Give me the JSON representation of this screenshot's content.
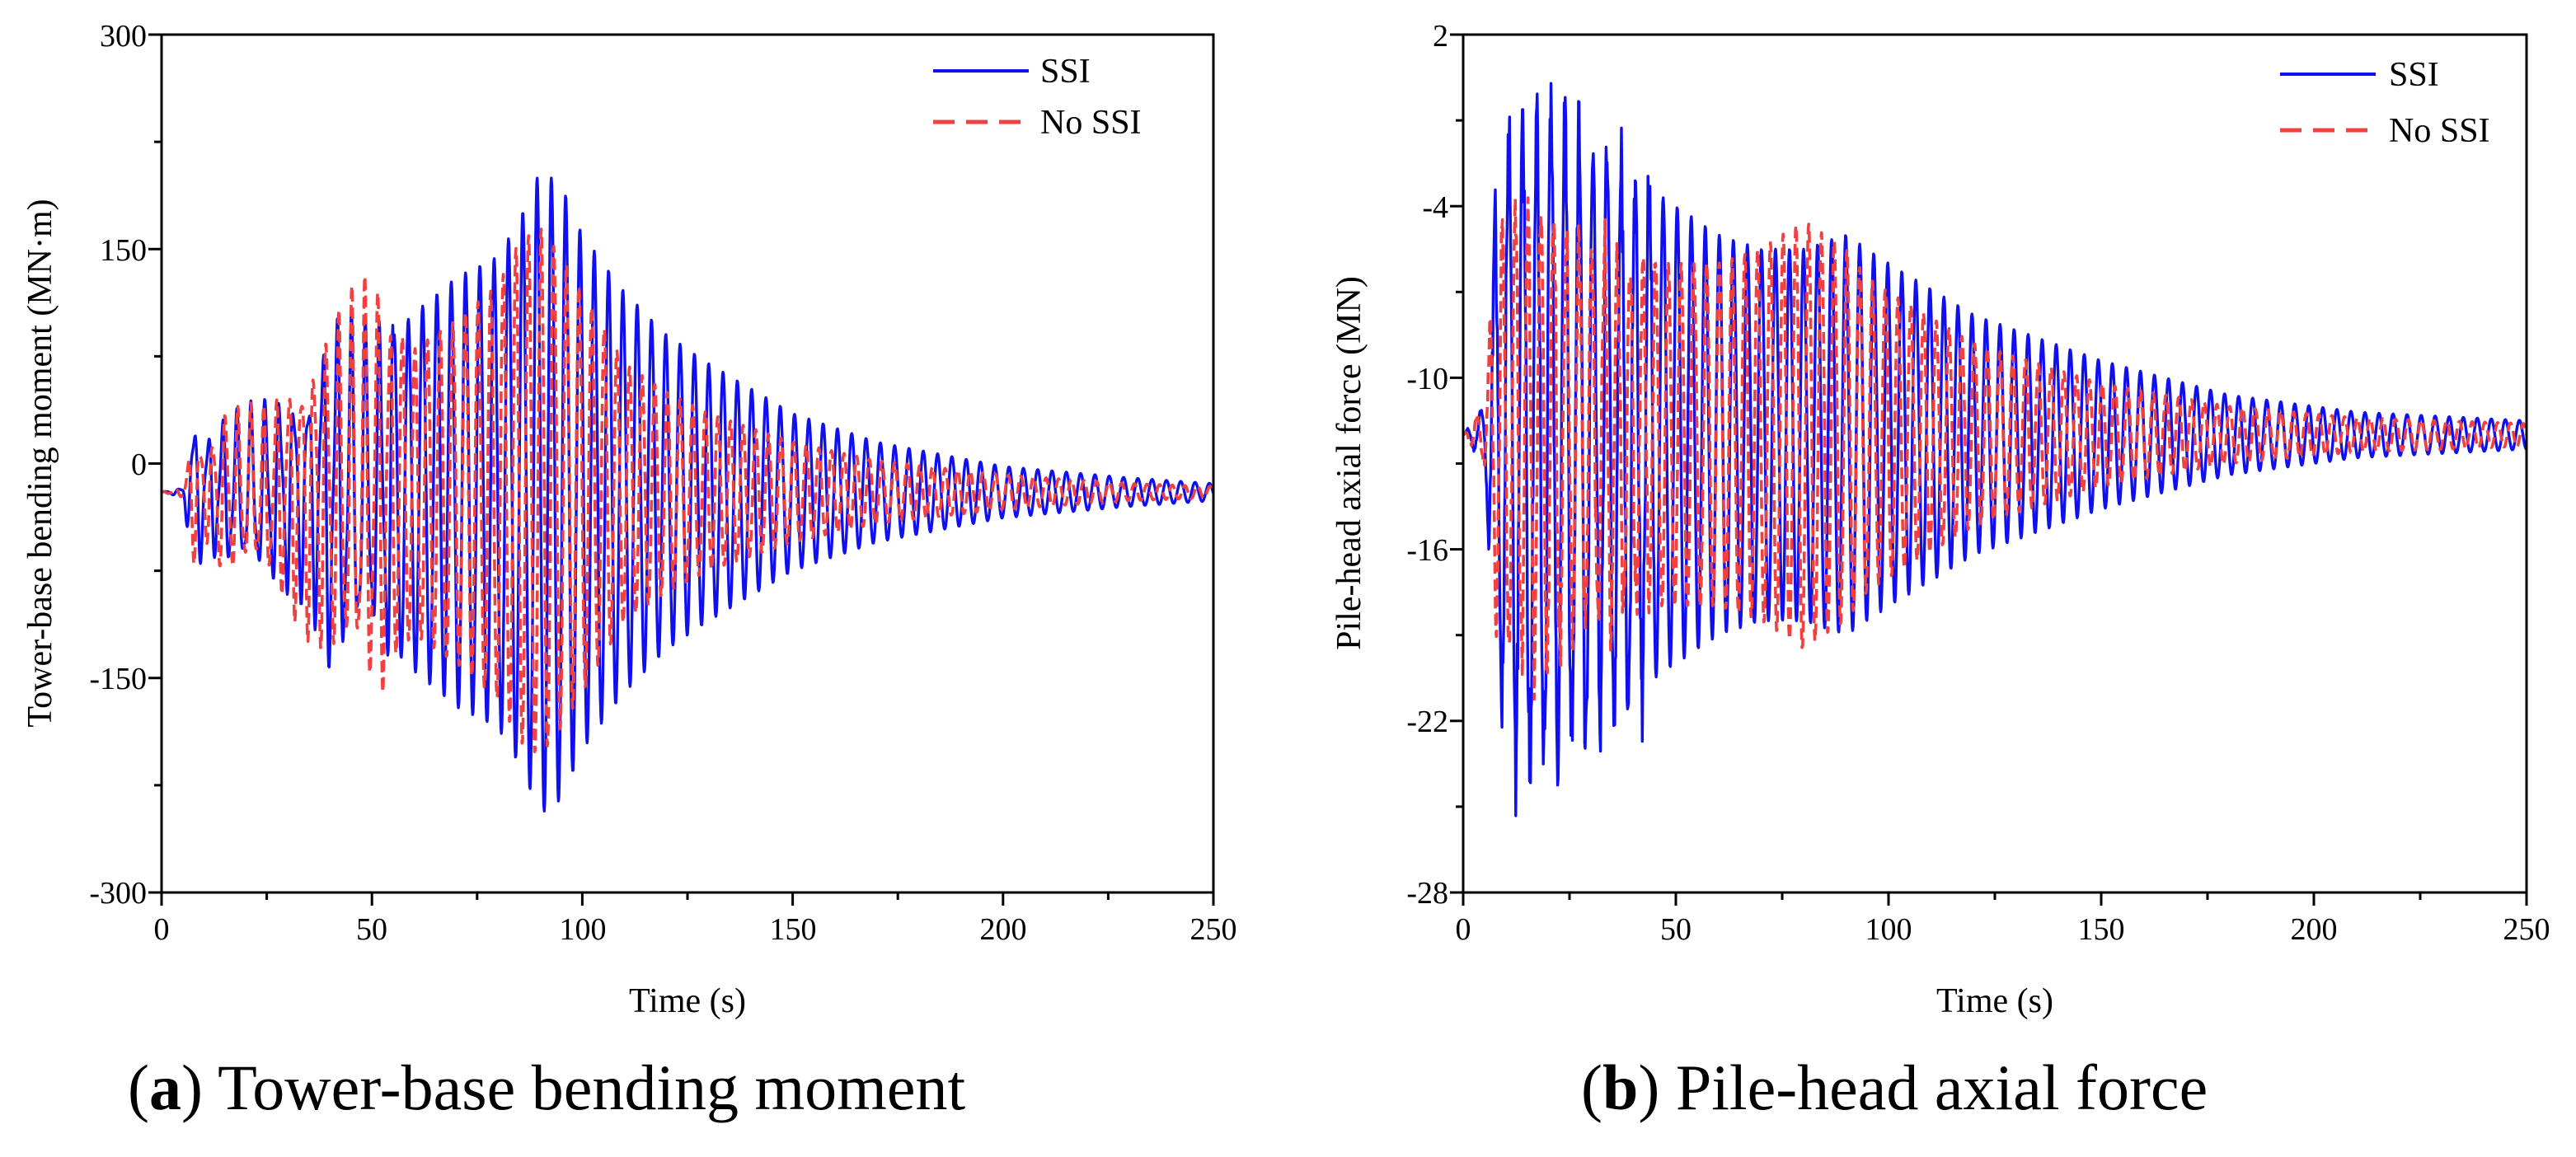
{
  "colors": {
    "ssi": "#1010ee",
    "no_ssi": "#f04040",
    "axis": "#000000"
  },
  "captions": [
    {
      "letter": "a",
      "text": "Tower-base bending moment"
    },
    {
      "letter": "b",
      "text": "Pile-head axial force"
    }
  ],
  "chart_data": [
    {
      "type": "line",
      "title": "",
      "xlabel": "Time (s)",
      "ylabel": "Tower-base bending moment (MN·m)",
      "xlim": [
        0,
        250
      ],
      "ylim": [
        -300,
        300
      ],
      "xticks": [
        0,
        50,
        100,
        150,
        200,
        250
      ],
      "xtick_labels": [
        "0",
        "50",
        "100",
        "150",
        "200",
        "250"
      ],
      "yticks": [
        -300,
        -150,
        0,
        150,
        300
      ],
      "ytick_labels": [
        "-300",
        "-150",
        "0",
        "150",
        "300"
      ],
      "legend": {
        "position": "top-right",
        "entries": [
          "SSI",
          "No SSI"
        ]
      },
      "series": [
        {
          "name": "SSI",
          "style": "solid",
          "baseline": -20,
          "period": 3.4,
          "envelope_t": [
            0,
            5,
            8,
            10,
            15,
            25,
            35,
            40,
            50,
            60,
            70,
            80,
            85,
            90,
            95,
            100,
            110,
            120,
            130,
            150,
            170,
            200,
            230,
            250
          ],
          "envelope_a": [
            0,
            3,
            50,
            35,
            45,
            55,
            65,
            110,
            95,
            125,
            150,
            165,
            190,
            225,
            215,
            180,
            140,
            110,
            90,
            55,
            35,
            18,
            10,
            6
          ]
        },
        {
          "name": "No SSI",
          "style": "dashed",
          "baseline": -20,
          "period": 3.0,
          "envelope_t": [
            0,
            5,
            8,
            10,
            15,
            25,
            35,
            40,
            50,
            60,
            70,
            80,
            85,
            90,
            95,
            100,
            110,
            120,
            130,
            150,
            170,
            200,
            230,
            250
          ],
          "envelope_a": [
            0,
            3,
            45,
            25,
            50,
            50,
            85,
            100,
            130,
            100,
            120,
            145,
            175,
            185,
            165,
            140,
            90,
            70,
            55,
            35,
            22,
            12,
            6,
            4
          ]
        }
      ]
    },
    {
      "type": "line",
      "title": "",
      "xlabel": "Time (s)",
      "ylabel": "Pile-head axial force (MN)",
      "xlim": [
        0,
        250
      ],
      "ylim": [
        -28,
        2
      ],
      "xticks": [
        0,
        50,
        100,
        150,
        200,
        250
      ],
      "xtick_labels": [
        "0",
        "50",
        "100",
        "150",
        "200",
        "250"
      ],
      "yticks": [
        -28,
        -22,
        -16,
        -10,
        -4,
        2
      ],
      "ytick_labels": [
        "-28",
        "-22",
        "-16",
        "-10",
        "-4",
        "2"
      ],
      "legend": {
        "position": "top-right",
        "entries": [
          "SSI",
          "No SSI"
        ]
      },
      "series": [
        {
          "name": "SSI",
          "style": "solid",
          "baseline": -12,
          "period": 3.3,
          "envelope_t": [
            0,
            5,
            8,
            12,
            20,
            25,
            30,
            40,
            50,
            60,
            70,
            80,
            90,
            95,
            100,
            120,
            150,
            180,
            210,
            250
          ],
          "envelope_a": [
            0,
            1,
            9,
            11,
            12,
            11,
            10,
            9,
            8,
            7,
            6.5,
            6.5,
            7,
            6.5,
            6,
            4.2,
            2.6,
            1.4,
            0.8,
            0.5
          ]
        },
        {
          "name": "No SSI",
          "style": "dashed",
          "baseline": -12,
          "period": 3.0,
          "envelope_t": [
            0,
            5,
            8,
            12,
            20,
            25,
            30,
            40,
            50,
            60,
            70,
            80,
            90,
            95,
            100,
            120,
            150,
            180,
            210,
            250
          ],
          "envelope_a": [
            0,
            1,
            7,
            7.5,
            8,
            7,
            6.5,
            6,
            6,
            6,
            6.5,
            7.5,
            6.5,
            5.5,
            5,
            3.2,
            1.8,
            1.0,
            0.6,
            0.4
          ]
        }
      ]
    }
  ]
}
